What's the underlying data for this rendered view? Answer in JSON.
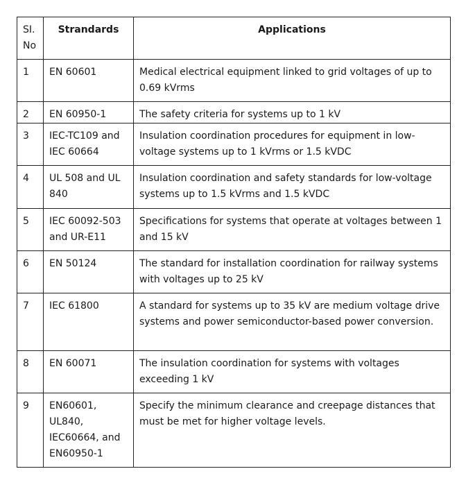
{
  "headers": [
    "SI. No",
    "Strandards",
    "Applications"
  ],
  "rows": [
    {
      "no": "1",
      "standard": "EN 60601",
      "application": "Medical electrical equipment linked to grid voltages of up to 0.69 kVrms"
    },
    {
      "no": "2",
      "standard": "EN 60950-1",
      "application": "The safety criteria for systems up to 1 kV"
    },
    {
      "no": "3",
      "standard": "IEC-TC109 and IEC 60664",
      "application": "Insulation coordination procedures for equipment in low-voltage systems up to 1 kVrms or 1.5 kVDC"
    },
    {
      "no": "4",
      "standard": "UL 508 and UL 840",
      "application": "Insulation coordination and safety standards for low-voltage systems up to 1.5 kVrms and 1.5 kVDC"
    },
    {
      "no": "5",
      "standard": "IEC 60092-503 and UR-E11",
      "application": "Specifications for systems that operate at voltages between 1 and 15 kV"
    },
    {
      "no": "6",
      "standard": "EN 50124",
      "application": "The standard for installation coordination for railway systems with voltages up to 25 kV"
    },
    {
      "no": "7",
      "standard": "IEC 61800",
      "application": "A standard for systems up to 35 kV are medium voltage drive systems and power semiconductor-based power conversion."
    },
    {
      "no": "8",
      "standard": "EN 60071",
      "application": "The insulation coordination for systems with voltages exceeding 1 kV"
    },
    {
      "no": "9",
      "standard": "EN60601, UL840, IEC60664, and EN60950-1",
      "application": "Specify the minimum clearance and creepage distances that must be met for higher voltage levels."
    }
  ]
}
